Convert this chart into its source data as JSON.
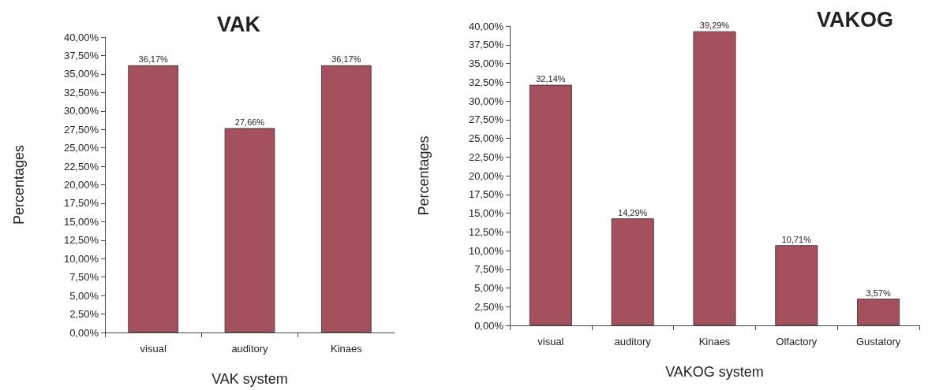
{
  "chart_data": [
    {
      "type": "bar",
      "title": "VAK",
      "xlabel": "VAK system",
      "ylabel": "Percentages",
      "categories": [
        "visual",
        "auditory",
        "Kinaes"
      ],
      "values": [
        36.17,
        27.66,
        36.17
      ],
      "value_labels": [
        "36,17%",
        "27,66%",
        "36,17%"
      ],
      "color": "#a5505d",
      "ylim": [
        0,
        40
      ],
      "yticks": [
        {
          "value": 0,
          "label": "0,00%"
        },
        {
          "value": 2.5,
          "label": "2,50%"
        },
        {
          "value": 5,
          "label": "5,00%"
        },
        {
          "value": 7.5,
          "label": "7,50%"
        },
        {
          "value": 10,
          "label": "10,00%"
        },
        {
          "value": 12.5,
          "label": "12,50%"
        },
        {
          "value": 15,
          "label": "15,00%"
        },
        {
          "value": 17.5,
          "label": "17,50%"
        },
        {
          "value": 20,
          "label": "20,00%"
        },
        {
          "value": 22.5,
          "label": "22,50%"
        },
        {
          "value": 25,
          "label": "25,00%"
        },
        {
          "value": 27.5,
          "label": "27,50%"
        },
        {
          "value": 30,
          "label": "30,00%"
        },
        {
          "value": 32.5,
          "label": "32,50%"
        },
        {
          "value": 35,
          "label": "35,00%"
        },
        {
          "value": 37.5,
          "label": "37,50%"
        },
        {
          "value": 40,
          "label": "40,00%"
        }
      ],
      "grid": false
    },
    {
      "type": "bar",
      "title": "VAKOG",
      "xlabel": "VAKOG system",
      "ylabel": "Percentages",
      "categories": [
        "visual",
        "auditory",
        "Kinaes",
        "Olfactory",
        "Gustatory"
      ],
      "values": [
        32.14,
        14.29,
        39.29,
        10.71,
        3.57
      ],
      "value_labels": [
        "32,14%",
        "14,29%",
        "39,29%",
        "10,71%",
        "3,57%"
      ],
      "color": "#a5505d",
      "ylim": [
        0,
        40
      ],
      "yticks": [
        {
          "value": 0,
          "label": "0,00%"
        },
        {
          "value": 2.5,
          "label": "2,50%"
        },
        {
          "value": 5,
          "label": "5,00%"
        },
        {
          "value": 7.5,
          "label": "7,50%"
        },
        {
          "value": 10,
          "label": "10,00%"
        },
        {
          "value": 12.5,
          "label": "12,50%"
        },
        {
          "value": 15,
          "label": "15,00%"
        },
        {
          "value": 17.5,
          "label": "17,50%"
        },
        {
          "value": 20,
          "label": "20,00%"
        },
        {
          "value": 22.5,
          "label": "22,50%"
        },
        {
          "value": 25,
          "label": "25,00%"
        },
        {
          "value": 27.5,
          "label": "27,50%"
        },
        {
          "value": 30,
          "label": "30,00%"
        },
        {
          "value": 32.5,
          "label": "32,50%"
        },
        {
          "value": 35,
          "label": "35,00%"
        },
        {
          "value": 37.5,
          "label": "37,50%"
        },
        {
          "value": 40,
          "label": "40,00%"
        }
      ],
      "grid": false
    }
  ]
}
